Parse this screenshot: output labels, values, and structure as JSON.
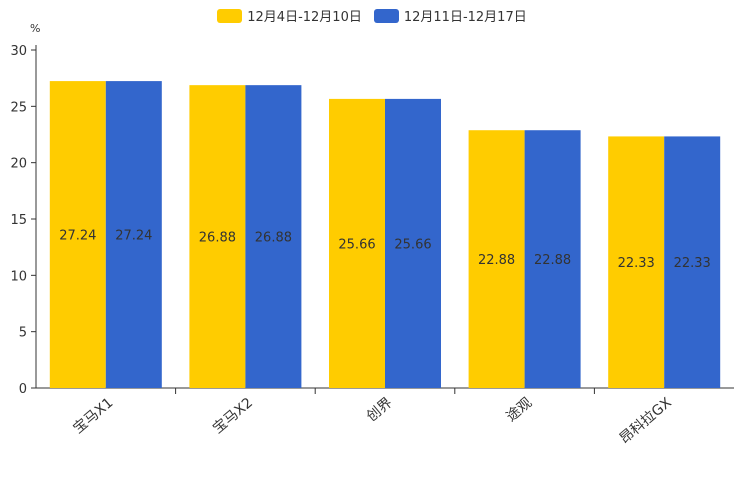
{
  "chart_data": {
    "type": "bar",
    "unit": "%",
    "categories": [
      "宝马X1",
      "宝马X2",
      "创界",
      "途观",
      "昂科拉GX"
    ],
    "series": [
      {
        "name": "12月4日-12月10日",
        "color": "#ffcc00",
        "values": [
          27.24,
          26.88,
          25.66,
          22.88,
          22.33
        ]
      },
      {
        "name": "12月11日-12月17日",
        "color": "#3366cc",
        "values": [
          27.24,
          26.88,
          25.66,
          22.88,
          22.33
        ]
      }
    ],
    "yticks": [
      0,
      5,
      10,
      15,
      20,
      25,
      30
    ],
    "ylim": [
      0,
      30
    ],
    "data_labels": true,
    "grid": false,
    "legend_position": "top-center"
  }
}
